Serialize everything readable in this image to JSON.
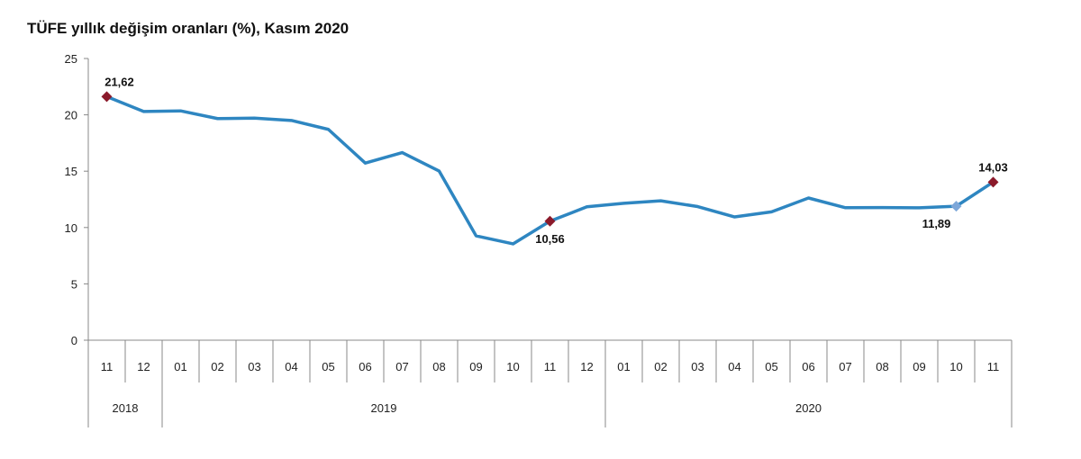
{
  "chart_data": {
    "type": "line",
    "title": "TÜFE yıllık değişim oranları (%), Kasım 2020",
    "ylim": [
      0,
      25
    ],
    "yticks": [
      0,
      5,
      10,
      15,
      20,
      25
    ],
    "categories": [
      "11",
      "12",
      "01",
      "02",
      "03",
      "04",
      "05",
      "06",
      "07",
      "08",
      "09",
      "10",
      "11",
      "12",
      "01",
      "02",
      "03",
      "04",
      "05",
      "06",
      "07",
      "08",
      "09",
      "10",
      "11"
    ],
    "years": [
      {
        "label": "2018",
        "span": 2
      },
      {
        "label": "2019",
        "span": 12
      },
      {
        "label": "2020",
        "span": 11
      }
    ],
    "values": [
      21.62,
      20.3,
      20.35,
      19.67,
      19.71,
      19.5,
      18.71,
      15.72,
      16.65,
      15.01,
      9.26,
      8.55,
      10.56,
      11.84,
      12.15,
      12.37,
      11.86,
      10.94,
      11.39,
      12.62,
      11.76,
      11.77,
      11.75,
      11.89,
      14.03
    ],
    "annotations": [
      {
        "index": 0,
        "text": "21,62",
        "position": "above",
        "marker_color": "#8b1a2b"
      },
      {
        "index": 12,
        "text": "10,56",
        "position": "below",
        "marker_color": "#8b1a2b"
      },
      {
        "index": 23,
        "text": "11,89",
        "position": "below",
        "marker_color": "#7da7d9"
      },
      {
        "index": 24,
        "text": "14,03",
        "position": "above",
        "marker_color": "#8b1a2b"
      }
    ],
    "line_color": "#2e86c1",
    "grid": false
  }
}
